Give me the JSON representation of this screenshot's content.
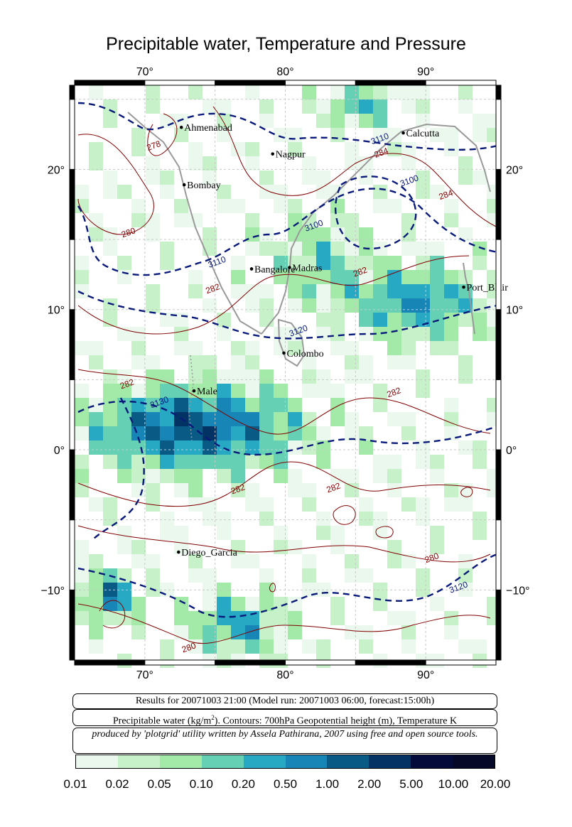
{
  "title": "Precipitable water, Temperature and Pressure",
  "axes": {
    "top_lon_labels": [
      "70°",
      "80°",
      "90°"
    ],
    "bottom_lon_labels": [
      "70°",
      "80°",
      "90°"
    ],
    "left_lat_labels": [
      "20°",
      "10°",
      "0°",
      "−10°"
    ],
    "right_lat_labels": [
      "20°",
      "10°",
      "0°",
      "−10°"
    ]
  },
  "map": {
    "lon_range": [
      65,
      95
    ],
    "lat_range": [
      -15,
      26
    ],
    "cities": [
      {
        "name": "Ahmenabad",
        "lon": 72.6,
        "lat": 23.0
      },
      {
        "name": "Nagpur",
        "lon": 79.1,
        "lat": 21.1
      },
      {
        "name": "Calcutta",
        "lon": 88.4,
        "lat": 22.6
      },
      {
        "name": "Bombay",
        "lon": 72.8,
        "lat": 18.9
      },
      {
        "name": "Bangalore",
        "lon": 77.6,
        "lat": 12.9
      },
      {
        "name": "Madras",
        "lon": 80.3,
        "lat": 13.0
      },
      {
        "name": "Port_Blair",
        "lon": 92.7,
        "lat": 11.6
      },
      {
        "name": "Colombo",
        "lon": 79.9,
        "lat": 6.9
      },
      {
        "name": "Male",
        "lon": 73.5,
        "lat": 4.2
      },
      {
        "name": "Diego_Garcia",
        "lon": 72.4,
        "lat": -7.3
      }
    ],
    "contour_labels": [
      {
        "text": "278",
        "lon": 70.7,
        "lat": 21.5,
        "kind": "temp"
      },
      {
        "text": "3110",
        "lon": 86.8,
        "lat": 22.0,
        "kind": "height"
      },
      {
        "text": "284",
        "lon": 86.9,
        "lat": 21.0,
        "kind": "temp"
      },
      {
        "text": "3100",
        "lon": 88.9,
        "lat": 19.0,
        "kind": "height"
      },
      {
        "text": "284",
        "lon": 91.5,
        "lat": 18.0,
        "kind": "temp"
      },
      {
        "text": "280",
        "lon": 68.9,
        "lat": 15.3,
        "kind": "temp"
      },
      {
        "text": "3100",
        "lon": 82.1,
        "lat": 15.8,
        "kind": "height"
      },
      {
        "text": "3110",
        "lon": 75.2,
        "lat": 13.2,
        "kind": "height"
      },
      {
        "text": "282",
        "lon": 85.4,
        "lat": 12.5,
        "kind": "temp"
      },
      {
        "text": "282",
        "lon": 74.9,
        "lat": 11.3,
        "kind": "temp"
      },
      {
        "text": "3120",
        "lon": 81.0,
        "lat": 8.3,
        "kind": "height"
      },
      {
        "text": "282",
        "lon": 68.8,
        "lat": 4.5,
        "kind": "temp"
      },
      {
        "text": "3130",
        "lon": 71.1,
        "lat": 3.2,
        "kind": "height"
      },
      {
        "text": "282",
        "lon": 87.8,
        "lat": 3.9,
        "kind": "temp"
      },
      {
        "text": "282",
        "lon": 76.7,
        "lat": -3.0,
        "kind": "temp"
      },
      {
        "text": "282",
        "lon": 83.5,
        "lat": -2.9,
        "kind": "temp"
      },
      {
        "text": "280",
        "lon": 90.5,
        "lat": -7.9,
        "kind": "temp"
      },
      {
        "text": "3120",
        "lon": 92.4,
        "lat": -10.0,
        "kind": "height"
      },
      {
        "text": "280",
        "lon": 73.2,
        "lat": -14.3,
        "kind": "temp"
      }
    ]
  },
  "info": {
    "results_line": "Results for 20071003 21:00 (Model run: 20071003 06:00, forecast:15:00h)",
    "precip_prefix": "Precipitable water (kg/m",
    "precip_sup": "2",
    "precip_suffix": ").  Contours: 700hPa Geopotential height (m), Temperature K",
    "credit": "produced by 'plotgrid' utility written by Assela Pathirana, 2007 using free and open source tools."
  },
  "legend": {
    "labels": [
      "0.01",
      "0.02",
      "0.05",
      "0.10",
      "0.20",
      "0.50",
      "1.00",
      "2.00",
      "5.00",
      "10.00",
      "20.00"
    ],
    "colors": [
      "#ebf8ee",
      "#c7f2c9",
      "#a3eaa8",
      "#66d0b4",
      "#27a9c4",
      "#1785b5",
      "#0a5a86",
      "#033364",
      "#040a3a",
      "#050826"
    ]
  }
}
